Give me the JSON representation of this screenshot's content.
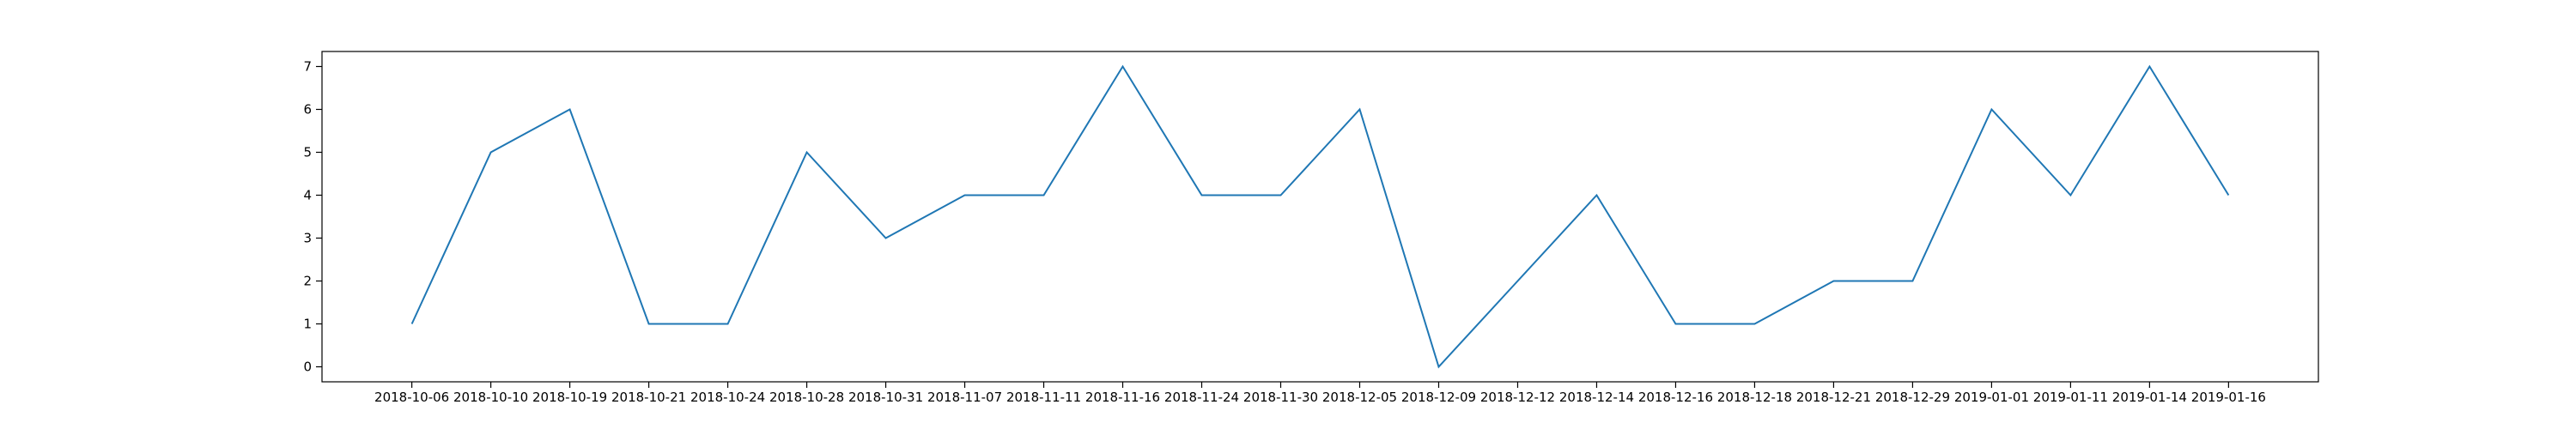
{
  "chart_data": {
    "type": "line",
    "title": "",
    "xlabel": "",
    "ylabel": "",
    "categories": [
      "2018-10-06",
      "2018-10-10",
      "2018-10-19",
      "2018-10-21",
      "2018-10-24",
      "2018-10-28",
      "2018-10-31",
      "2018-11-07",
      "2018-11-11",
      "2018-11-16",
      "2018-11-24",
      "2018-11-30",
      "2018-12-05",
      "2018-12-09",
      "2018-12-12",
      "2018-12-14",
      "2018-12-16",
      "2018-12-18",
      "2018-12-21",
      "2018-12-29",
      "2019-01-01",
      "2019-01-11",
      "2019-01-14",
      "2019-01-16"
    ],
    "series": [
      {
        "values": [
          1,
          5,
          6,
          1,
          1,
          5,
          3,
          4,
          4,
          7,
          4,
          4,
          6,
          0,
          2,
          4,
          1,
          1,
          2,
          2,
          6,
          4,
          7,
          4
        ]
      }
    ],
    "y_ticks": [
      0,
      1,
      2,
      3,
      4,
      5,
      6,
      7
    ],
    "ylim": [
      -0.35,
      7.35
    ],
    "grid": false,
    "colors": {
      "line": "#1f77b4",
      "axes": "#000000",
      "background": "#ffffff"
    }
  }
}
